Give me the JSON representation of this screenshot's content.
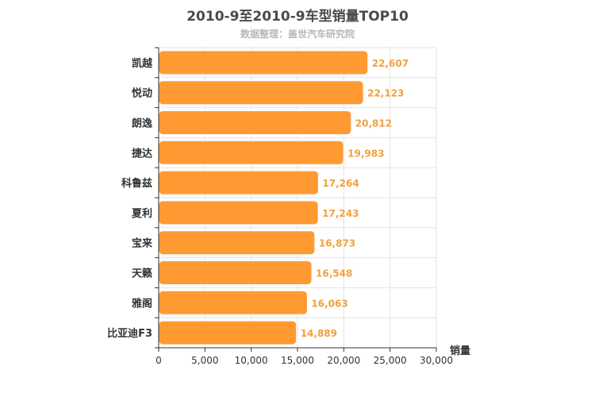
{
  "title": "2010-9至2010-9车型销量TOP10",
  "subtitle": "数据整理：盖世汽车研究院",
  "colors": {
    "bar": "#ff9a33",
    "bar_stroke": "#ffffff",
    "value_label": "#f0a040",
    "grid": "#e3e3e3",
    "axis": "#333333"
  },
  "chart_data": {
    "type": "bar",
    "orientation": "horizontal",
    "categories": [
      "凯越",
      "悦动",
      "朗逸",
      "捷达",
      "科鲁兹",
      "夏利",
      "宝来",
      "天籁",
      "雅阁",
      "比亚迪F3"
    ],
    "values": [
      22607,
      22123,
      20812,
      19983,
      17264,
      17243,
      16873,
      16548,
      16063,
      14889
    ],
    "value_labels": [
      "22,607",
      "22,123",
      "20,812",
      "19,983",
      "17,264",
      "17,243",
      "16,873",
      "16,548",
      "16,063",
      "14,889"
    ],
    "xlabel": "销量",
    "xlim": [
      0,
      30000
    ],
    "x_ticks": [
      0,
      5000,
      10000,
      15000,
      20000,
      25000,
      30000
    ],
    "x_tick_labels": [
      "0",
      "5,000",
      "10,000",
      "15,000",
      "20,000",
      "25,000",
      "30,000"
    ],
    "grid": true,
    "legend": "none"
  }
}
